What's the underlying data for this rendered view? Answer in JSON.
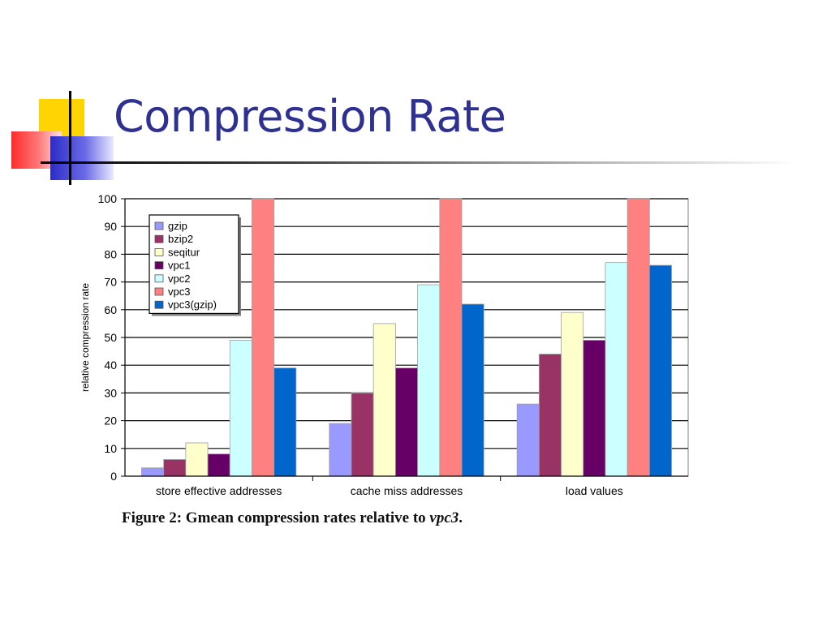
{
  "slide": {
    "title": "Compression Rate",
    "caption_prefix": "Figure 2: Gmean compression rates relative to ",
    "caption_em": "vpc3",
    "caption_suffix": "."
  },
  "chart_data": {
    "type": "bar",
    "title": "",
    "xlabel": "",
    "ylabel": "relative compression rate",
    "ylim": [
      0,
      100
    ],
    "yticks": [
      0,
      10,
      20,
      30,
      40,
      50,
      60,
      70,
      80,
      90,
      100
    ],
    "grid": true,
    "legend_position": "top-left",
    "categories": [
      "store effective addresses",
      "cache miss addresses",
      "load values"
    ],
    "series": [
      {
        "name": "gzip",
        "color": "#9999ff",
        "values": [
          3,
          19,
          26
        ]
      },
      {
        "name": "bzip2",
        "color": "#993366",
        "values": [
          6,
          30,
          44
        ]
      },
      {
        "name": "seqitur",
        "color": "#ffffcc",
        "values": [
          12,
          55,
          59
        ]
      },
      {
        "name": "vpc1",
        "color": "#660066",
        "values": [
          8,
          39,
          49
        ]
      },
      {
        "name": "vpc2",
        "color": "#ccffff",
        "values": [
          49,
          69,
          77
        ]
      },
      {
        "name": "vpc3",
        "color": "#ff8080",
        "values": [
          100,
          100,
          100
        ]
      },
      {
        "name": "vpc3(gzip)",
        "color": "#0066cc",
        "values": [
          39,
          62,
          76
        ]
      }
    ]
  }
}
